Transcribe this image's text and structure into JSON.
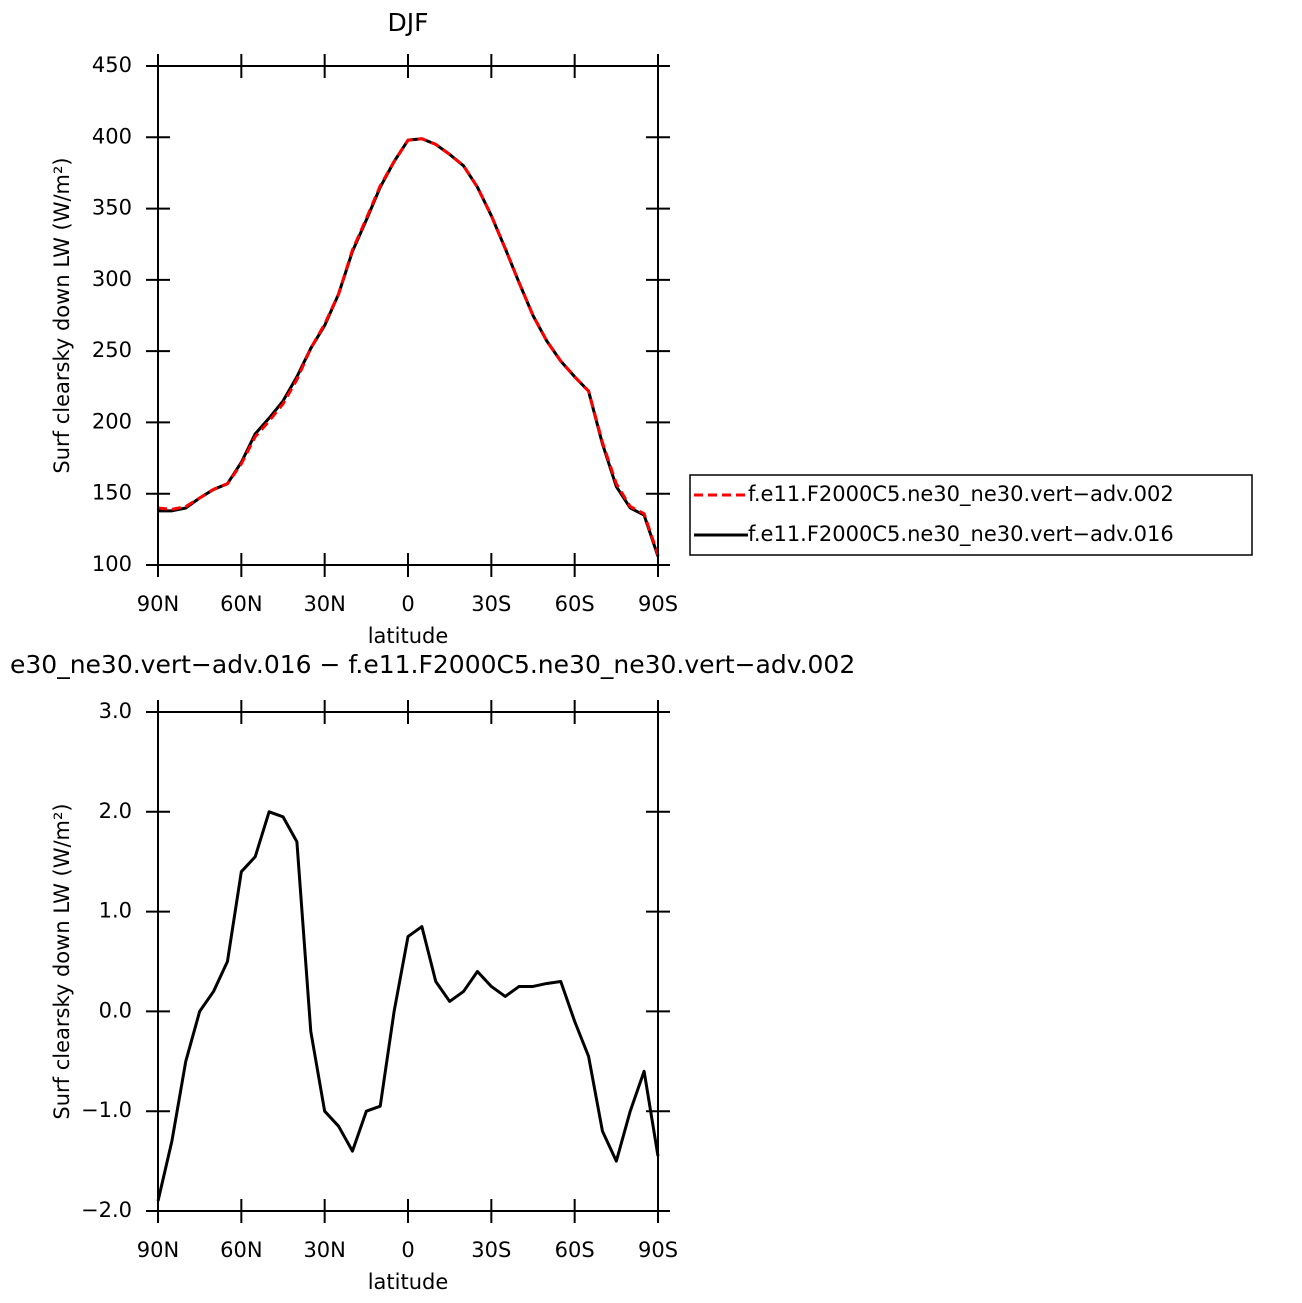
{
  "chart_data": [
    {
      "type": "line",
      "title": "DJF",
      "xlabel": "latitude",
      "ylabel": "Surf clearsky down LW (W/m²)",
      "x": [
        90,
        85,
        80,
        75,
        70,
        65,
        60,
        55,
        50,
        45,
        40,
        35,
        30,
        25,
        20,
        15,
        10,
        5,
        0,
        -5,
        -10,
        -15,
        -20,
        -25,
        -30,
        -35,
        -40,
        -45,
        -50,
        -55,
        -60,
        -65,
        -70,
        -75,
        -80,
        -85,
        -90
      ],
      "xlim": [
        90,
        -90
      ],
      "xticks": [
        {
          "value": 90,
          "label": "90N"
        },
        {
          "value": 60,
          "label": "60N"
        },
        {
          "value": 30,
          "label": "30N"
        },
        0,
        {
          "value": -30,
          "label": "30S"
        },
        {
          "value": -60,
          "label": "60S"
        },
        {
          "value": -90,
          "label": "90S"
        }
      ],
      "ylim": [
        100,
        450
      ],
      "yticks": [
        100,
        150,
        200,
        250,
        300,
        350,
        400,
        450
      ],
      "legend": "outside-right",
      "series": [
        {
          "name": "f.e11.F2000C5.ne30_ne30.vert−adv.002",
          "color": "#ff0000",
          "dash": true,
          "values": [
            140,
            139,
            141,
            147,
            153,
            157,
            171,
            190,
            201,
            213,
            230,
            252,
            269,
            290,
            321,
            343,
            366,
            383,
            398,
            399,
            395,
            388,
            380,
            365,
            345,
            322,
            298,
            275,
            257,
            243,
            232,
            222,
            186,
            157,
            141,
            136,
            107
          ]
        },
        {
          "name": "f.e11.F2000C5.ne30_ne30.vert−adv.016",
          "color": "#000000",
          "dash": false,
          "values": [
            138,
            138,
            140,
            147,
            153,
            157,
            172,
            192,
            203,
            215,
            232,
            252,
            268,
            290,
            320,
            342,
            365,
            383,
            398,
            399,
            395,
            388,
            380,
            365,
            345,
            322,
            298,
            275,
            257,
            243,
            232,
            222,
            185,
            155,
            140,
            135,
            106
          ]
        }
      ]
    },
    {
      "type": "line",
      "title": "e30_ne30.vert−adv.016 − f.e11.F2000C5.ne30_ne30.vert−adv.002",
      "xlabel": "latitude",
      "ylabel": "Surf clearsky down LW (W/m²)",
      "x": [
        90,
        85,
        80,
        75,
        70,
        65,
        60,
        55,
        50,
        45,
        40,
        35,
        30,
        25,
        20,
        15,
        10,
        5,
        0,
        -5,
        -10,
        -15,
        -20,
        -25,
        -30,
        -35,
        -40,
        -45,
        -50,
        -55,
        -60,
        -65,
        -70,
        -75,
        -80,
        -85,
        -90
      ],
      "xlim": [
        90,
        -90
      ],
      "xticks": [
        {
          "value": 90,
          "label": "90N"
        },
        {
          "value": 60,
          "label": "60N"
        },
        {
          "value": 30,
          "label": "30N"
        },
        0,
        {
          "value": -30,
          "label": "30S"
        },
        {
          "value": -60,
          "label": "60S"
        },
        {
          "value": -90,
          "label": "90S"
        }
      ],
      "ylim": [
        -2,
        3
      ],
      "yticks": [
        {
          "value": -2,
          "label": "−2.0"
        },
        {
          "value": -1,
          "label": "−1.0"
        },
        {
          "value": 0,
          "label": "0.0"
        },
        {
          "value": 1,
          "label": "1.0"
        },
        {
          "value": 2,
          "label": "2.0"
        },
        {
          "value": 3,
          "label": "3.0"
        }
      ],
      "series": [
        {
          "color": "#000000",
          "dash": false,
          "values": [
            -1.9,
            -1.3,
            -0.5,
            0.0,
            0.2,
            0.5,
            1.4,
            1.55,
            2.0,
            1.95,
            1.7,
            -0.2,
            -1.0,
            -1.15,
            -1.4,
            -1.0,
            -0.95,
            0.0,
            0.75,
            0.85,
            0.3,
            0.1,
            0.2,
            0.4,
            0.25,
            0.15,
            0.25,
            0.25,
            0.28,
            0.3,
            -0.1,
            -0.45,
            -1.2,
            -1.5,
            -1.0,
            -0.6,
            -1.45
          ]
        }
      ]
    }
  ]
}
